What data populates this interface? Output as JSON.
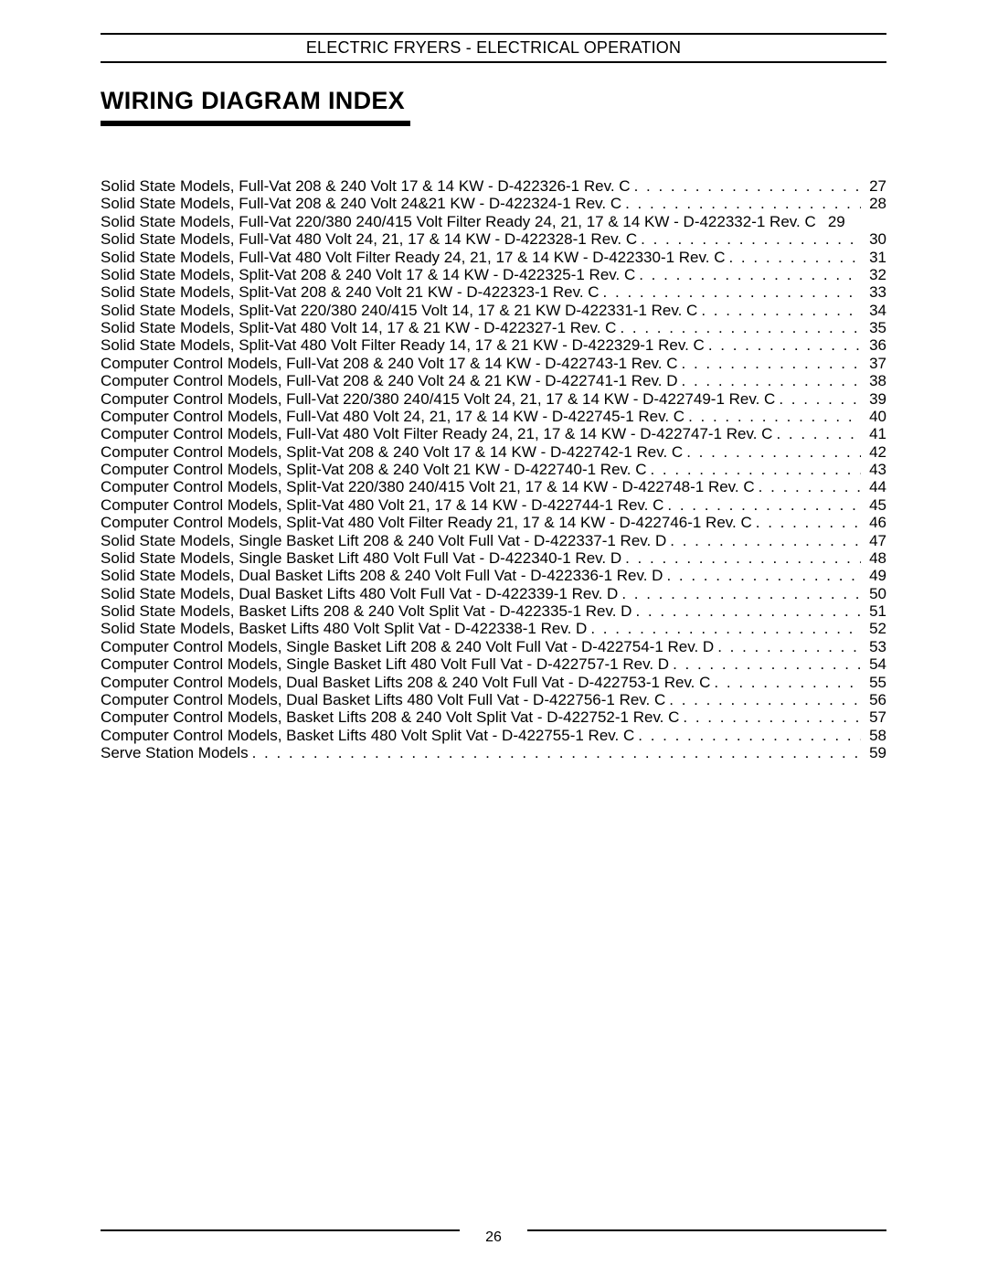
{
  "header": "ELECTRIC FRYERS - ELECTRICAL OPERATION",
  "section_title": "WIRING DIAGRAM INDEX",
  "page_number": "26",
  "entries": [
    {
      "label": "Solid State Models, Full-Vat 208 & 240 Volt 17 & 14 KW - D-422326-1 Rev. C",
      "page": "27",
      "dots": true
    },
    {
      "label": "Solid State Models, Full-Vat 208 & 240 Volt 24&21 KW - D-422324-1 Rev. C",
      "page": "28",
      "dots": true
    },
    {
      "label": "Solid State Models, Full-Vat 220/380 240/415 Volt Filter Ready 24, 21, 17 & 14 KW - D-422332-1 Rev. C",
      "page": "29",
      "dots": false
    },
    {
      "label": "Solid State Models, Full-Vat 480 Volt 24, 21, 17 & 14 KW - D-422328-1 Rev. C",
      "page": "30",
      "dots": true
    },
    {
      "label": "Solid State Models, Full-Vat 480 Volt Filter Ready 24, 21, 17 & 14 KW - D-422330-1 Rev. C",
      "page": "31",
      "dots": true
    },
    {
      "label": "Solid State Models, Split-Vat 208 & 240 Volt 17 & 14 KW - D-422325-1 Rev. C",
      "page": "32",
      "dots": true
    },
    {
      "label": "Solid State Models, Split-Vat 208 & 240 Volt 21 KW - D-422323-1 Rev. C",
      "page": "33",
      "dots": true
    },
    {
      "label": "Solid State Models, Split-Vat 220/380 240/415 Volt 14, 17 & 21 KW D-422331-1 Rev. C",
      "page": "34",
      "dots": true
    },
    {
      "label": "Solid State Models, Split-Vat 480 Volt 14, 17 & 21 KW - D-422327-1 Rev. C",
      "page": "35",
      "dots": true
    },
    {
      "label": "Solid State Models, Split-Vat 480 Volt Filter Ready 14, 17 & 21 KW - D-422329-1 Rev. C",
      "page": "36",
      "dots": true
    },
    {
      "label": "Computer Control Models, Full-Vat 208 & 240 Volt 17 & 14 KW - D-422743-1 Rev. C",
      "page": "37",
      "dots": true
    },
    {
      "label": "Computer Control Models, Full-Vat 208 & 240 Volt 24 & 21 KW - D-422741-1 Rev. D",
      "page": "38",
      "dots": true
    },
    {
      "label": "Computer Control Models, Full-Vat 220/380 240/415 Volt 24, 21, 17 & 14 KW - D-422749-1 Rev. C",
      "page": "39",
      "dots": true
    },
    {
      "label": "Computer Control Models, Full-Vat 480 Volt 24, 21, 17 & 14 KW  - D-422745-1 Rev. C",
      "page": "40",
      "dots": true
    },
    {
      "label": "Computer Control Models, Full-Vat 480 Volt Filter Ready 24, 21, 17 & 14 KW  - D-422747-1 Rev. C",
      "page": "41",
      "dots": true
    },
    {
      "label": "Computer Control Models, Split-Vat 208 & 240 Volt 17 & 14 KW - D-422742-1 Rev. C",
      "page": "42",
      "dots": true
    },
    {
      "label": "Computer Control Models, Split-Vat 208 & 240 Volt 21 KW - D-422740-1 Rev. C",
      "page": "43",
      "dots": true
    },
    {
      "label": "Computer Control Models, Split-Vat 220/380 240/415 Volt 21, 17 & 14 KW - D-422748-1 Rev. C",
      "page": "44",
      "dots": true
    },
    {
      "label": "Computer Control Models, Split-Vat 480 Volt 21, 17 & 14 KW - D-422744-1 Rev. C",
      "page": "45",
      "dots": true
    },
    {
      "label": "Computer Control Models, Split-Vat 480 Volt Filter Ready 21, 17 & 14 KW - D-422746-1 Rev. C",
      "page": "46",
      "dots": true
    },
    {
      "label": "Solid State Models, Single Basket Lift 208 & 240 Volt Full Vat - D-422337-1 Rev. D",
      "page": "47",
      "dots": true
    },
    {
      "label": "Solid State Models, Single Basket Lift 480 Volt Full Vat - D-422340-1 Rev. D",
      "page": "48",
      "dots": true
    },
    {
      "label": "Solid State Models, Dual Basket Lifts 208 & 240 Volt Full Vat - D-422336-1 Rev. D",
      "page": "49",
      "dots": true
    },
    {
      "label": "Solid State Models, Dual Basket Lifts 480 Volt Full Vat - D-422339-1 Rev. D",
      "page": "50",
      "dots": true
    },
    {
      "label": "Solid State Models, Basket Lifts 208 & 240 Volt Split Vat - D-422335-1 Rev. D",
      "page": "51",
      "dots": true
    },
    {
      "label": "Solid State Models, Basket Lifts 480 Volt Split Vat - D-422338-1 Rev. D",
      "page": "52",
      "dots": true
    },
    {
      "label": "Computer Control Models, Single Basket Lift 208 & 240 Volt Full Vat - D-422754-1 Rev. D",
      "page": "53",
      "dots": true
    },
    {
      "label": "Computer Control Models, Single Basket Lift 480 Volt Full Vat - D-422757-1 Rev. D",
      "page": "54",
      "dots": true
    },
    {
      "label": "Computer Control Models, Dual Basket Lifts 208 & 240 Volt Full Vat - D-422753-1 Rev. C",
      "page": "55",
      "dots": true
    },
    {
      "label": "Computer Control Models, Dual Basket Lifts 480 Volt Full Vat - D-422756-1 Rev. C",
      "page": "56",
      "dots": true
    },
    {
      "label": "Computer Control Models, Basket Lifts 208 & 240 Volt Split Vat - D-422752-1 Rev. C",
      "page": "57",
      "dots": true
    },
    {
      "label": "Computer Control Models, Basket Lifts 480 Volt Split Vat - D-422755-1 Rev. C",
      "page": "58",
      "dots": true
    },
    {
      "label": "Serve Station Models",
      "page": "59",
      "dots": true
    }
  ]
}
